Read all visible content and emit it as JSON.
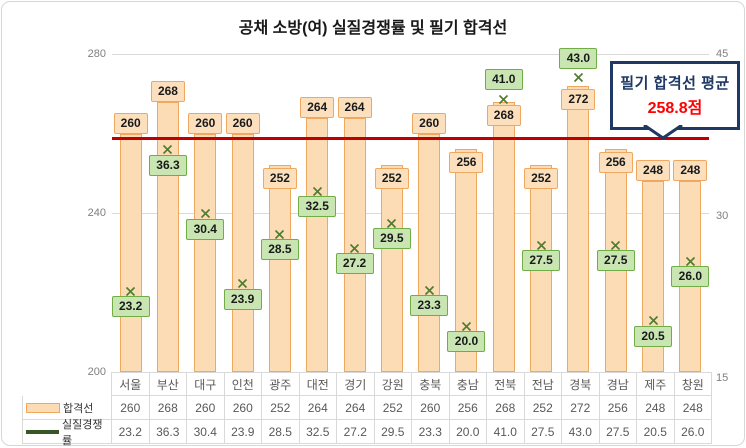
{
  "title": "공채 소방(여) 실질경쟁률 및 필기 합격선",
  "chart_data": {
    "type": "bar",
    "subtype": "combo-bar-and-scatter-markers",
    "title": "공채 소방(여) 실질경쟁률 및 필기 합격선",
    "categories": [
      "서울",
      "부산",
      "대구",
      "인천",
      "광주",
      "대전",
      "경기",
      "강원",
      "충북",
      "충남",
      "전북",
      "전남",
      "경북",
      "경남",
      "제주",
      "창원"
    ],
    "series": [
      {
        "name": "합격선",
        "type": "bar",
        "axis": "left",
        "values": [
          260,
          268,
          260,
          260,
          252,
          264,
          264,
          252,
          260,
          256,
          268,
          252,
          272,
          256,
          248,
          248
        ]
      },
      {
        "name": "실질경쟁률",
        "type": "scatter-x",
        "axis": "right",
        "values": [
          "23.2",
          "36.3",
          "30.4",
          "23.9",
          "28.5",
          "32.5",
          "27.2",
          "29.5",
          "23.3",
          "20.0",
          "41.0",
          "27.5",
          "43.0",
          "27.5",
          "20.5",
          "26.0"
        ]
      }
    ],
    "left_axis": {
      "min": 200,
      "max": 280,
      "ticks": [
        280,
        240,
        200
      ]
    },
    "right_axis": {
      "min": 15,
      "max": 45,
      "ticks": [
        45,
        30,
        15
      ]
    },
    "avg_line": {
      "value": 258.8
    },
    "callout": {
      "line1": "필기 합격선 평균",
      "line2": "258.8점"
    },
    "grid": "horizontal",
    "legend_position": "table-left",
    "layout_hints": {
      "bar_label_inside": [
        false,
        false,
        false,
        false,
        true,
        false,
        false,
        true,
        false,
        true,
        true,
        true,
        true,
        true,
        false,
        false
      ],
      "rate_label_above": [
        false,
        false,
        false,
        false,
        false,
        false,
        false,
        false,
        false,
        false,
        true,
        false,
        true,
        false,
        false,
        false
      ]
    },
    "colors": {
      "bar_fill": "#FBDCB4",
      "bar_border": "#F0A75F",
      "bar_label_fill": "#FCE0BE",
      "bar_label_border": "#F0A75F",
      "rate_fill": "#C9E5B2",
      "rate_border": "#70AD47",
      "marker": "#4E7B2F",
      "avg_line": "#C00000",
      "callout_border": "#1F3864",
      "callout_text": "#1F3864",
      "callout_value": "#FF0000",
      "axis_text": "#7F7F7F",
      "table_text": "#595959",
      "grid": "#D9D9D9",
      "legend_line": "#375623"
    }
  }
}
